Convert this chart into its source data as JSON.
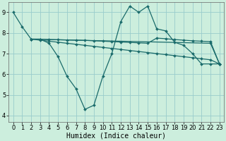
{
  "line1_x": [
    0,
    1,
    2,
    3,
    4,
    5,
    6,
    7,
    8,
    9,
    10,
    11,
    12,
    13,
    14,
    15,
    16,
    17,
    18,
    19,
    20,
    21,
    22,
    23
  ],
  "line1_y": [
    9.0,
    8.3,
    7.7,
    7.7,
    7.5,
    6.85,
    5.9,
    5.3,
    4.3,
    4.5,
    5.9,
    7.0,
    8.55,
    9.3,
    9.0,
    9.3,
    8.2,
    8.1,
    7.55,
    7.4,
    7.0,
    6.5,
    6.5,
    6.5
  ],
  "line2_x": [
    2,
    3,
    4,
    5,
    6,
    7,
    8,
    9,
    10,
    11,
    12,
    13,
    14,
    15,
    16,
    17,
    18,
    19,
    20,
    21,
    22,
    23
  ],
  "line2_y": [
    7.7,
    7.7,
    7.68,
    7.67,
    7.66,
    7.65,
    7.64,
    7.62,
    7.6,
    7.58,
    7.56,
    7.54,
    7.52,
    7.5,
    7.75,
    7.72,
    7.68,
    7.65,
    7.62,
    7.6,
    7.58,
    6.5
  ],
  "line3_x": [
    2,
    3,
    4,
    5,
    6,
    7,
    8,
    9,
    10,
    11,
    12,
    13,
    14,
    15,
    16,
    17,
    18,
    19,
    20,
    21,
    22,
    23
  ],
  "line3_y": [
    7.7,
    7.65,
    7.6,
    7.55,
    7.5,
    7.45,
    7.4,
    7.35,
    7.3,
    7.25,
    7.2,
    7.15,
    7.1,
    7.05,
    7.0,
    6.95,
    6.9,
    6.85,
    6.8,
    6.75,
    6.7,
    6.5
  ],
  "line4_x": [
    2,
    22,
    23
  ],
  "line4_y": [
    7.7,
    7.5,
    6.5
  ],
  "color": "#1a6b6b",
  "bg_color": "#cceedd",
  "grid_color": "#99cccc",
  "xlabel": "Humidex (Indice chaleur)",
  "xlim": [
    -0.5,
    23.5
  ],
  "ylim": [
    3.7,
    9.5
  ],
  "xticks": [
    0,
    1,
    2,
    3,
    4,
    5,
    6,
    7,
    8,
    9,
    10,
    11,
    12,
    13,
    14,
    15,
    16,
    17,
    18,
    19,
    20,
    21,
    22,
    23
  ],
  "yticks": [
    4,
    5,
    6,
    7,
    8,
    9
  ],
  "xlabel_fontsize": 7.0,
  "tick_fontsize": 6.0,
  "marker_size": 2.0,
  "line_width": 0.9
}
